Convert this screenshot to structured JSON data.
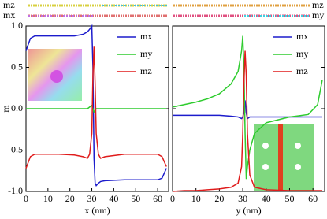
{
  "chart_data": [
    {
      "type": "line",
      "x_label": "x (nm)",
      "y_label": "m",
      "strip_labels": [
        "mz",
        "mx"
      ],
      "x": [
        0,
        2,
        4,
        8,
        15,
        22,
        26,
        28,
        29,
        30,
        30.5,
        31,
        31.5,
        32,
        33,
        34,
        36,
        45,
        55,
        60,
        62,
        64
      ],
      "series": [
        {
          "name": "mx",
          "color": "#1c1ccc",
          "values": [
            0.7,
            0.85,
            0.88,
            0.88,
            0.88,
            0.88,
            0.9,
            0.93,
            0.96,
            1.0,
            0.5,
            -0.6,
            -0.9,
            -0.93,
            -0.9,
            -0.88,
            -0.87,
            -0.86,
            -0.86,
            -0.86,
            -0.84,
            -0.72
          ]
        },
        {
          "name": "my",
          "color": "#2ecc2e",
          "values": [
            0,
            0,
            0,
            0,
            0,
            0,
            0,
            0,
            0.02,
            0.04,
            0,
            -0.04,
            -0.02,
            0,
            0,
            0,
            0,
            0,
            0,
            0,
            0,
            0
          ]
        },
        {
          "name": "mz",
          "color": "#e01c1c",
          "values": [
            -0.72,
            -0.58,
            -0.55,
            -0.55,
            -0.55,
            -0.56,
            -0.58,
            -0.6,
            -0.55,
            -0.3,
            0.4,
            0.75,
            0.3,
            -0.3,
            -0.55,
            -0.6,
            -0.58,
            -0.55,
            -0.55,
            -0.55,
            -0.58,
            -0.7
          ]
        }
      ],
      "xlim": [
        0,
        65
      ],
      "xticks": [
        0,
        10,
        20,
        30,
        40,
        50,
        60
      ],
      "ylim": [
        -1,
        1
      ],
      "yticks": [
        {
          "value": -1,
          "label": "-1.0"
        },
        {
          "value": -0.5,
          "label": "-0.5"
        },
        {
          "value": 0,
          "label": "0.0"
        },
        {
          "value": 0.5,
          "label": "0.5"
        },
        {
          "value": 1,
          "label": "1.0"
        }
      ],
      "ytick_labels": true,
      "legend": "upper right"
    },
    {
      "type": "line",
      "x_label": "y (nm)",
      "strip_labels": [
        "mz",
        "my"
      ],
      "x": [
        0,
        5,
        10,
        15,
        20,
        25,
        28,
        29.5,
        30,
        30.5,
        31,
        31.5,
        32,
        33,
        35,
        40,
        50,
        58,
        62,
        64
      ],
      "series": [
        {
          "name": "mx",
          "color": "#1c1ccc",
          "values": [
            -0.08,
            -0.08,
            -0.08,
            -0.08,
            -0.08,
            -0.09,
            -0.1,
            -0.12,
            -0.1,
            -0.05,
            0.1,
            -0.05,
            -0.12,
            -0.1,
            -0.1,
            -0.1,
            -0.1,
            -0.1,
            -0.1,
            -0.1
          ]
        },
        {
          "name": "my",
          "color": "#2ecc2e",
          "values": [
            0.02,
            0.05,
            0.08,
            0.12,
            0.18,
            0.3,
            0.45,
            0.7,
            0.88,
            0.5,
            -0.3,
            -0.85,
            -0.7,
            -0.5,
            -0.3,
            -0.17,
            -0.1,
            -0.07,
            0.05,
            0.35
          ]
        },
        {
          "name": "mz",
          "color": "#e01c1c",
          "values": [
            -1,
            -0.99,
            -0.99,
            -0.98,
            -0.97,
            -0.95,
            -0.9,
            -0.7,
            -0.3,
            0.3,
            0.7,
            0.4,
            -0.3,
            -0.8,
            -0.95,
            -0.98,
            -0.99,
            -0.99,
            -0.99,
            -0.99
          ]
        }
      ],
      "xlim": [
        0,
        65
      ],
      "xticks": [
        0,
        10,
        20,
        30,
        40,
        50,
        60
      ],
      "ylim": [
        -1,
        1
      ],
      "yticks": [
        -1,
        -0.5,
        0,
        0.5,
        1
      ],
      "ytick_labels": false,
      "legend": "upper right"
    }
  ]
}
